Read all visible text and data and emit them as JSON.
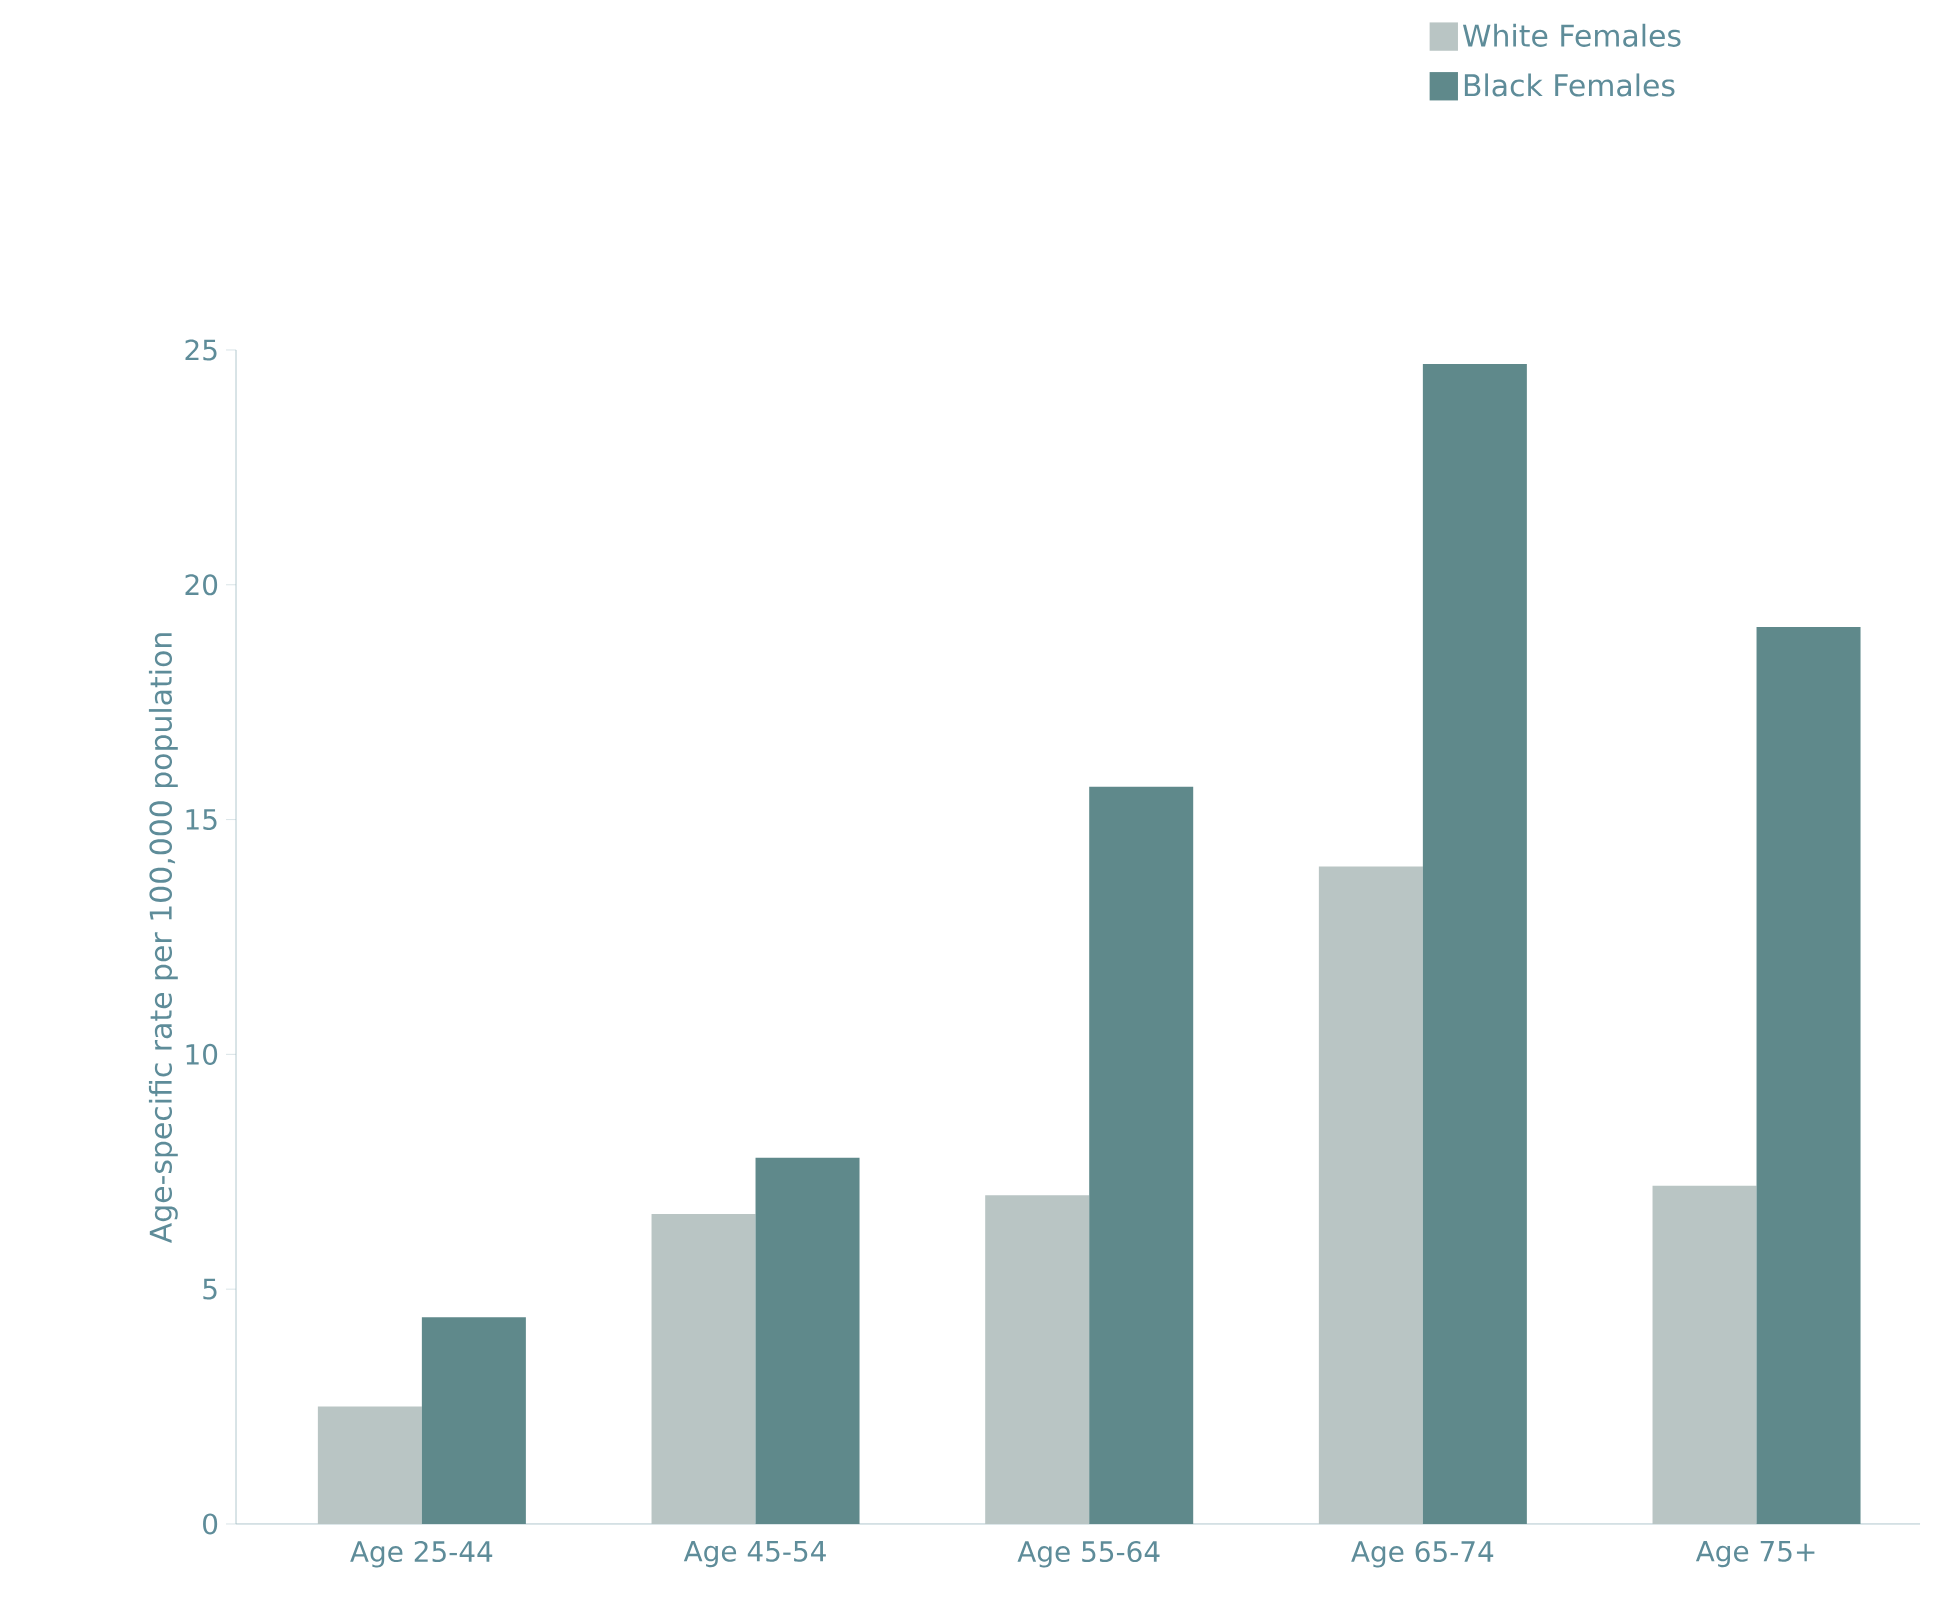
{
  "chart_data": {
    "type": "bar",
    "ylabel": "Age-specific rate per 100,000 population",
    "categories": [
      "Age 25-44",
      "Age 45-54",
      "Age 55-64",
      "Age 65-74",
      "Age 75+"
    ],
    "series": [
      {
        "name": "White Females",
        "color": "#b9c5c4",
        "values": [
          2.5,
          6.6,
          7.0,
          14.0,
          7.2
        ]
      },
      {
        "name": "Black Females",
        "color": "#5f898b",
        "values": [
          4.4,
          7.8,
          15.7,
          24.7,
          19.1
        ]
      }
    ],
    "ylim": [
      0,
      25
    ],
    "yticks": [
      0,
      5,
      10,
      15,
      20,
      25
    ],
    "legend": "top right",
    "grid": false
  }
}
